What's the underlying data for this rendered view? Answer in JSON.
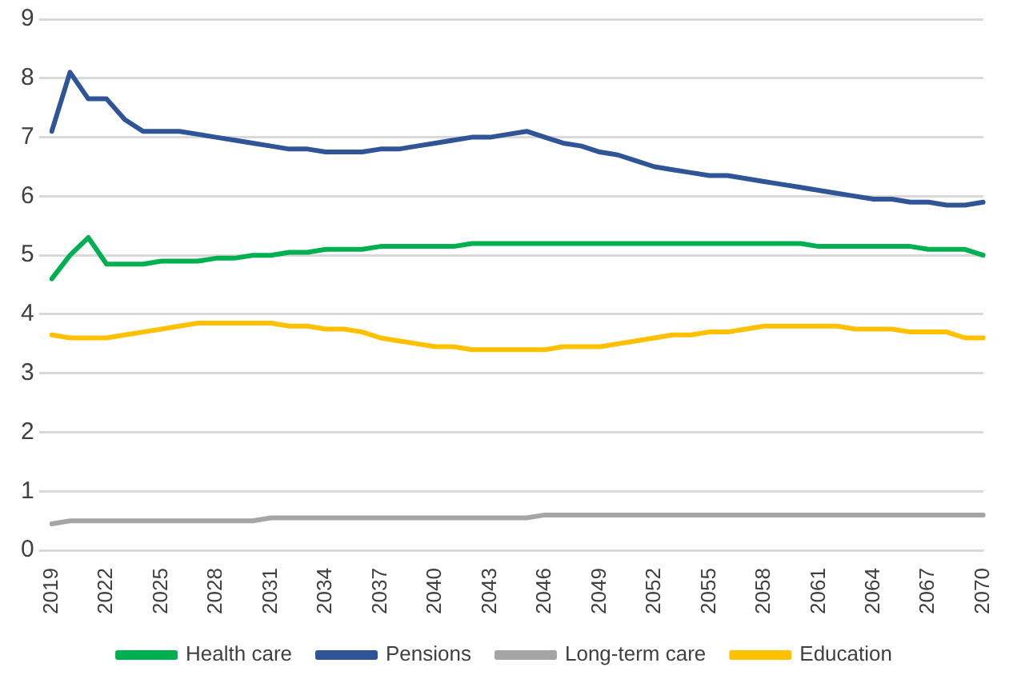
{
  "chart_data": {
    "type": "line",
    "categories": [
      "2019",
      null,
      null,
      "2022",
      null,
      null,
      "2025",
      null,
      null,
      "2028",
      null,
      null,
      "2031",
      null,
      null,
      "2034",
      null,
      null,
      "2037",
      null,
      null,
      "2040",
      null,
      null,
      "2043",
      null,
      null,
      "2046",
      null,
      null,
      "2049",
      null,
      null,
      "2052",
      null,
      null,
      "2055",
      null,
      null,
      "2058",
      null,
      null,
      "2061",
      null,
      null,
      "2064",
      null,
      null,
      "2067",
      null,
      null,
      "2070"
    ],
    "series": [
      {
        "name": "Health care",
        "color": "#00b050",
        "values": [
          4.6,
          5.0,
          5.3,
          4.85,
          4.85,
          4.85,
          4.9,
          4.9,
          4.9,
          4.95,
          4.95,
          5.0,
          5.0,
          5.05,
          5.05,
          5.1,
          5.1,
          5.1,
          5.15,
          5.15,
          5.15,
          5.15,
          5.15,
          5.2,
          5.2,
          5.2,
          5.2,
          5.2,
          5.2,
          5.2,
          5.2,
          5.2,
          5.2,
          5.2,
          5.2,
          5.2,
          5.2,
          5.2,
          5.2,
          5.2,
          5.2,
          5.2,
          5.15,
          5.15,
          5.15,
          5.15,
          5.15,
          5.15,
          5.1,
          5.1,
          5.1,
          5.0
        ]
      },
      {
        "name": "Pensions",
        "color": "#2f5597",
        "values": [
          7.1,
          8.1,
          7.65,
          7.65,
          7.3,
          7.1,
          7.1,
          7.1,
          7.05,
          7.0,
          6.95,
          6.9,
          6.85,
          6.8,
          6.8,
          6.75,
          6.75,
          6.75,
          6.8,
          6.8,
          6.85,
          6.9,
          6.95,
          7.0,
          7.0,
          7.05,
          7.1,
          7.0,
          6.9,
          6.85,
          6.75,
          6.7,
          6.6,
          6.5,
          6.45,
          6.4,
          6.35,
          6.35,
          6.3,
          6.25,
          6.2,
          6.15,
          6.1,
          6.05,
          6.0,
          5.95,
          5.95,
          5.9,
          5.9,
          5.85,
          5.85,
          5.9
        ]
      },
      {
        "name": "Long-term care",
        "color": "#a5a5a5",
        "values": [
          0.45,
          0.5,
          0.5,
          0.5,
          0.5,
          0.5,
          0.5,
          0.5,
          0.5,
          0.5,
          0.5,
          0.5,
          0.55,
          0.55,
          0.55,
          0.55,
          0.55,
          0.55,
          0.55,
          0.55,
          0.55,
          0.55,
          0.55,
          0.55,
          0.55,
          0.55,
          0.55,
          0.6,
          0.6,
          0.6,
          0.6,
          0.6,
          0.6,
          0.6,
          0.6,
          0.6,
          0.6,
          0.6,
          0.6,
          0.6,
          0.6,
          0.6,
          0.6,
          0.6,
          0.6,
          0.6,
          0.6,
          0.6,
          0.6,
          0.6,
          0.6,
          0.6
        ]
      },
      {
        "name": "Education",
        "color": "#ffc000",
        "values": [
          3.65,
          3.6,
          3.6,
          3.6,
          3.65,
          3.7,
          3.75,
          3.8,
          3.85,
          3.85,
          3.85,
          3.85,
          3.85,
          3.8,
          3.8,
          3.75,
          3.75,
          3.7,
          3.6,
          3.55,
          3.5,
          3.45,
          3.45,
          3.4,
          3.4,
          3.4,
          3.4,
          3.4,
          3.45,
          3.45,
          3.45,
          3.5,
          3.55,
          3.6,
          3.65,
          3.65,
          3.7,
          3.7,
          3.75,
          3.8,
          3.8,
          3.8,
          3.8,
          3.8,
          3.75,
          3.75,
          3.75,
          3.7,
          3.7,
          3.7,
          3.6,
          3.6
        ]
      }
    ],
    "ylim": [
      0,
      9
    ],
    "yticks": [
      0,
      1,
      2,
      3,
      4,
      5,
      6,
      7,
      8,
      9
    ],
    "grid": "y",
    "legend": "bottom",
    "marker": "none",
    "line_style": "solid"
  }
}
